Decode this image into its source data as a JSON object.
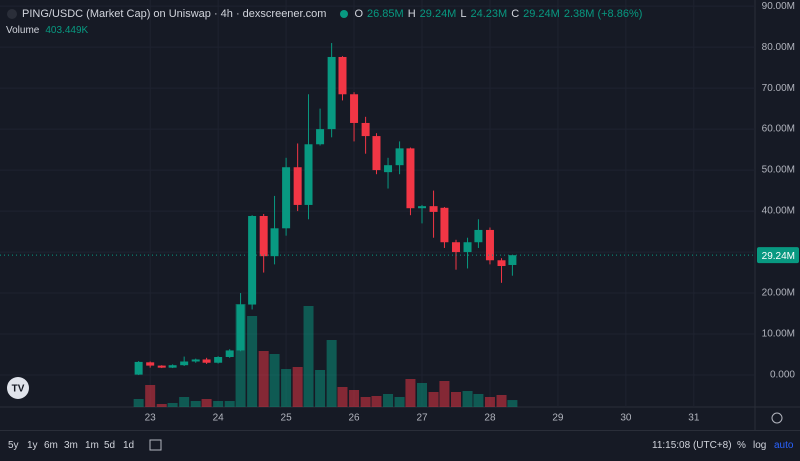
{
  "header": {
    "title": "PING/USDC (Market Cap) on Uniswap · 4h · dexscreener.com",
    "ohlc": [
      {
        "key": "O",
        "value": "26.85M"
      },
      {
        "key": "H",
        "value": "29.24M"
      },
      {
        "key": "L",
        "value": "24.23M"
      },
      {
        "key": "C",
        "value": "29.24M"
      }
    ],
    "change": "2.38M (+8.86%)",
    "volume_label": "Volume",
    "volume_value": "403.449K"
  },
  "chart_data": {
    "type": "candlestick",
    "x": [
      22.83,
      23,
      23.17,
      23.33,
      23.5,
      23.67,
      23.83,
      24,
      24.17,
      24.33,
      24.5,
      24.67,
      24.83,
      25,
      25.17,
      25.33,
      25.5,
      25.67,
      25.83,
      26,
      26.17,
      26.33,
      26.5,
      26.67,
      26.83,
      27,
      27.17,
      27.33,
      27.5,
      27.67,
      27.83,
      28,
      28.17,
      28.33
    ],
    "open": [
      0.1,
      3.1,
      2.3,
      1.8,
      2.4,
      3.3,
      3.8,
      3.0,
      4.4,
      6.0,
      17.2,
      38.8,
      29.0,
      35.8,
      50.7,
      41.5,
      56.3,
      60.0,
      77.6,
      68.5,
      61.5,
      58.3,
      49.5,
      51.2,
      55.3,
      40.7,
      41.2,
      40.8,
      32.4,
      30.0,
      32.4,
      35.4,
      28.0,
      26.85
    ],
    "high": [
      3.4,
      3.3,
      2.4,
      2.6,
      4.5,
      4.0,
      4.2,
      4.6,
      6.3,
      20.0,
      39.0,
      39.3,
      43.7,
      53.0,
      56.5,
      68.5,
      65.0,
      81.0,
      77.8,
      69.0,
      63.0,
      59.0,
      53.0,
      57.0,
      55.5,
      41.5,
      45.0,
      41.0,
      33.0,
      33.5,
      38.0,
      36.0,
      28.5,
      29.24
    ],
    "low": [
      0,
      1.8,
      1.7,
      1.7,
      2.2,
      3.0,
      2.7,
      2.8,
      4.2,
      5.8,
      16.0,
      25.0,
      27.0,
      34.0,
      40.0,
      38.0,
      56.0,
      58.0,
      67.0,
      57.0,
      54.0,
      49.0,
      45.5,
      49.0,
      39.0,
      37.0,
      33.5,
      31.0,
      25.7,
      26.0,
      31.0,
      27.0,
      22.5,
      24.23
    ],
    "close": [
      3.2,
      2.3,
      1.8,
      2.4,
      3.3,
      3.8,
      3.0,
      4.4,
      6.0,
      17.2,
      38.8,
      29.0,
      35.8,
      50.7,
      41.5,
      56.3,
      60.0,
      77.6,
      68.5,
      61.5,
      58.3,
      50.0,
      51.2,
      55.3,
      40.7,
      41.2,
      39.8,
      32.4,
      30.0,
      32.4,
      35.4,
      28.0,
      26.6,
      29.24
    ],
    "volume": [
      464,
      1276,
      174,
      232,
      580,
      348,
      464,
      348,
      348,
      5974,
      5278,
      3248,
      3074,
      2204,
      2320,
      5858,
      2146,
      3886,
      1160,
      986,
      580,
      638,
      754,
      580,
      1624,
      1392,
      870,
      1508,
      870,
      928,
      754,
      580,
      696,
      403.449
    ],
    "up_color": "#089981",
    "down_color": "#f23645",
    "xlim": [
      20.79,
      31.9
    ],
    "xticks": [
      23,
      24,
      25,
      26,
      27,
      28,
      29,
      30,
      31
    ],
    "ylim": [
      -7.8,
      91.5
    ],
    "yticks": [
      {
        "value": 0,
        "label": "0.000"
      },
      {
        "value": 10,
        "label": "10.00M"
      },
      {
        "value": 20,
        "label": "20.00M"
      },
      {
        "value": 30,
        "label": "30.00M"
      },
      {
        "value": 40,
        "label": "40.00M"
      },
      {
        "value": 50,
        "label": "50.00M"
      },
      {
        "value": 60,
        "label": "60.00M"
      },
      {
        "value": 70,
        "label": "70.00M"
      },
      {
        "value": 80,
        "label": "80.00M"
      },
      {
        "value": 90,
        "label": "90.00M"
      }
    ],
    "last_price": {
      "value": 29.24,
      "label": "29.24M"
    },
    "grid": true
  },
  "toolbar": {
    "ranges": [
      "5y",
      "1y",
      "6m",
      "3m",
      "1m",
      "5d",
      "1d"
    ],
    "time": "11:15:08 (UTC+8)",
    "options": [
      "%",
      "log",
      "auto"
    ]
  }
}
